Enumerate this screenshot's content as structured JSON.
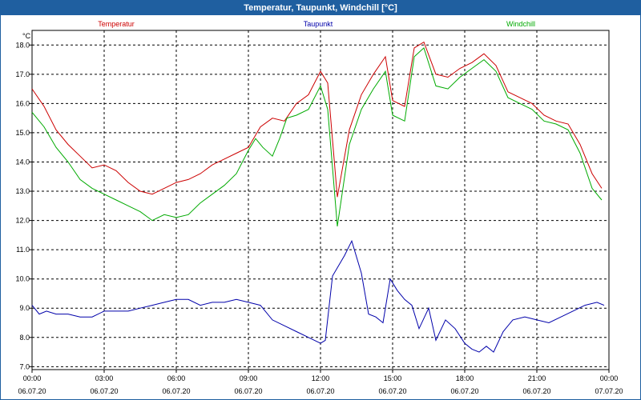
{
  "window": {
    "title": "Temperatur, Taupunkt, Windchill [°C]"
  },
  "chart_data": {
    "type": "line",
    "title": "Temperatur, Taupunkt, Windchill [°C]",
    "ylabel": "°C",
    "ylim": [
      6.9,
      18.5
    ],
    "xlim": [
      0,
      24
    ],
    "grid": true,
    "yticks": [
      "7.0",
      "8.0",
      "9.0",
      "10.0",
      "11.0",
      "12.0",
      "13.0",
      "14.0",
      "15.0",
      "16.0",
      "17.0",
      "18.0"
    ],
    "xticks": [
      {
        "time": "00:00",
        "date": "06.07.20"
      },
      {
        "time": "03:00",
        "date": "06.07.20"
      },
      {
        "time": "06:00",
        "date": "06.07.20"
      },
      {
        "time": "09:00",
        "date": "06.07.20"
      },
      {
        "time": "12:00",
        "date": "06.07.20"
      },
      {
        "time": "15:00",
        "date": "06.07.20"
      },
      {
        "time": "18:00",
        "date": "06.07.20"
      },
      {
        "time": "21:00",
        "date": "06.07.20"
      },
      {
        "time": "00:00",
        "date": "07.07.20"
      }
    ],
    "series": [
      {
        "name": "Temperatur",
        "color": "#cc0000",
        "x": [
          0,
          0.5,
          1,
          1.5,
          2,
          2.5,
          3,
          3.5,
          4,
          4.5,
          5,
          5.5,
          6,
          6.5,
          7,
          7.5,
          8,
          8.5,
          9,
          9.5,
          10,
          10.5,
          11,
          11.5,
          12,
          12.3,
          12.7,
          13.2,
          13.7,
          14.2,
          14.7,
          15,
          15.5,
          15.9,
          16.3,
          16.8,
          17.3,
          17.8,
          18.3,
          18.8,
          19.3,
          19.8,
          20.3,
          20.8,
          21.3,
          21.8,
          22.3,
          22.8,
          23.3,
          23.7
        ],
        "y": [
          16.5,
          15.9,
          15.1,
          14.6,
          14.2,
          13.8,
          13.9,
          13.7,
          13.3,
          13.0,
          12.9,
          13.1,
          13.3,
          13.4,
          13.6,
          13.9,
          14.1,
          14.3,
          14.5,
          15.2,
          15.5,
          15.4,
          16.0,
          16.3,
          17.1,
          16.7,
          12.8,
          15.1,
          16.3,
          17.0,
          17.6,
          16.1,
          15.9,
          17.9,
          18.1,
          17.0,
          16.9,
          17.2,
          17.4,
          17.7,
          17.3,
          16.4,
          16.2,
          16.0,
          15.6,
          15.4,
          15.3,
          14.6,
          13.6,
          13.1
        ]
      },
      {
        "name": "Taupunkt",
        "color": "#0000aa",
        "x": [
          0,
          0.3,
          0.6,
          1,
          1.5,
          2,
          2.5,
          3,
          3.5,
          4,
          4.5,
          5,
          5.5,
          6,
          6.5,
          7,
          7.5,
          8,
          8.5,
          9,
          9.5,
          10,
          10.5,
          11,
          11.5,
          12,
          12.2,
          12.5,
          13,
          13.3,
          13.7,
          14,
          14.3,
          14.6,
          14.9,
          15.2,
          15.5,
          15.8,
          16.1,
          16.5,
          16.8,
          17.2,
          17.6,
          18,
          18.3,
          18.6,
          18.9,
          19.2,
          19.6,
          20,
          20.5,
          21,
          21.5,
          22,
          22.5,
          23,
          23.5,
          23.8
        ],
        "y": [
          9.1,
          8.8,
          8.9,
          8.8,
          8.8,
          8.7,
          8.7,
          8.9,
          8.9,
          8.9,
          9.0,
          9.1,
          9.2,
          9.3,
          9.3,
          9.1,
          9.2,
          9.2,
          9.3,
          9.2,
          9.1,
          8.6,
          8.4,
          8.2,
          8.0,
          7.8,
          7.9,
          10.1,
          10.8,
          11.3,
          10.2,
          8.8,
          8.7,
          8.5,
          10.0,
          9.6,
          9.3,
          9.1,
          8.3,
          9.0,
          7.9,
          8.6,
          8.3,
          7.8,
          7.6,
          7.5,
          7.7,
          7.5,
          8.2,
          8.6,
          8.7,
          8.6,
          8.5,
          8.7,
          8.9,
          9.1,
          9.2,
          9.1
        ]
      },
      {
        "name": "Windchill",
        "color": "#00aa00",
        "x": [
          0,
          0.5,
          1,
          1.5,
          2,
          2.5,
          3,
          3.5,
          4,
          4.5,
          5,
          5.5,
          6,
          6.5,
          7,
          7.5,
          8,
          8.5,
          9,
          9.3,
          9.6,
          10,
          10.3,
          10.6,
          11,
          11.5,
          12,
          12.3,
          12.7,
          13.2,
          13.7,
          14.2,
          14.7,
          15,
          15.5,
          15.9,
          16.3,
          16.8,
          17.3,
          17.8,
          18.3,
          18.8,
          19.3,
          19.8,
          20.3,
          20.8,
          21.3,
          21.8,
          22.3,
          22.8,
          23.3,
          23.7
        ],
        "y": [
          15.7,
          15.2,
          14.5,
          14.0,
          13.4,
          13.1,
          12.9,
          12.7,
          12.5,
          12.3,
          12.0,
          12.2,
          12.1,
          12.2,
          12.6,
          12.9,
          13.2,
          13.6,
          14.4,
          14.8,
          14.5,
          14.2,
          14.8,
          15.5,
          15.6,
          15.8,
          16.6,
          15.8,
          11.8,
          14.6,
          15.8,
          16.5,
          17.1,
          15.6,
          15.4,
          17.6,
          17.9,
          16.6,
          16.5,
          16.9,
          17.2,
          17.5,
          17.1,
          16.2,
          16.0,
          15.8,
          15.4,
          15.3,
          15.1,
          14.3,
          13.1,
          12.7
        ]
      }
    ]
  }
}
